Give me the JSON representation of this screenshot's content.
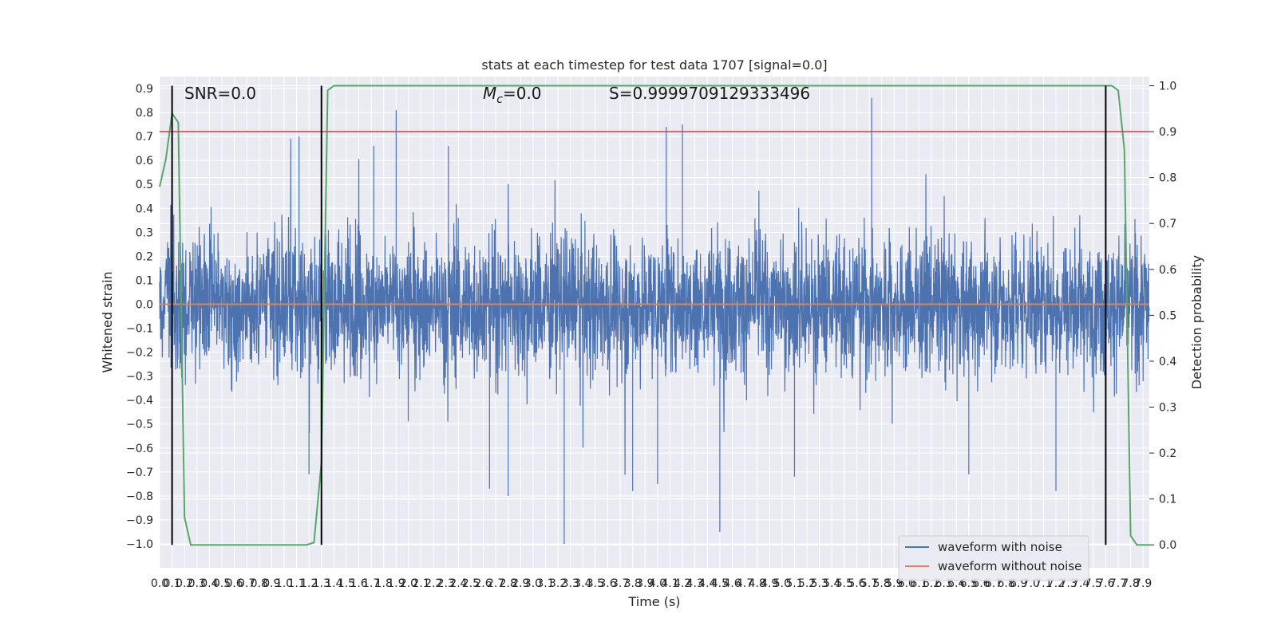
{
  "chart_data": {
    "type": "line",
    "title": "stats at each timestep for test data 1707 [signal=0.0]",
    "xlabel": "Time (s)",
    "ylabel": "Whitened strain",
    "y2label": "Detection probability",
    "xlim": [
      0.0,
      7.95
    ],
    "ylim": [
      -1.1,
      0.95
    ],
    "y2lim": [
      -0.05,
      1.02
    ],
    "x_ticks": [
      0.0,
      0.1,
      0.2,
      0.3,
      0.4,
      0.5,
      0.6,
      0.7,
      0.8,
      0.9,
      1.0,
      1.1,
      1.2,
      1.3,
      1.4,
      1.5,
      1.6,
      1.7,
      1.8,
      1.9,
      2.0,
      2.1,
      2.2,
      2.3,
      2.4,
      2.5,
      2.6,
      2.7,
      2.8,
      2.9,
      3.0,
      3.1,
      3.2,
      3.3,
      3.4,
      3.5,
      3.6,
      3.7,
      3.8,
      3.9,
      4.0,
      4.1,
      4.2,
      4.3,
      4.4,
      4.5,
      4.6,
      4.7,
      4.8,
      4.9,
      5.0,
      5.1,
      5.2,
      5.3,
      5.4,
      5.5,
      5.6,
      5.7,
      5.8,
      5.9,
      6.0,
      6.1,
      6.2,
      6.3,
      6.4,
      6.5,
      6.6,
      6.7,
      6.8,
      6.9,
      7.0,
      7.1,
      7.2,
      7.3,
      7.4,
      7.5,
      7.6,
      7.7,
      7.8,
      7.9
    ],
    "y_ticks": [
      -1.0,
      -0.9,
      -0.8,
      -0.7,
      -0.6,
      -0.5,
      -0.4,
      -0.3,
      -0.2,
      -0.1,
      0.0,
      0.1,
      0.2,
      0.3,
      0.4,
      0.5,
      0.6,
      0.7,
      0.8,
      0.9
    ],
    "y2_ticks": [
      0.0,
      0.1,
      0.2,
      0.3,
      0.4,
      0.5,
      0.6,
      0.7,
      0.8,
      0.9,
      1.0
    ],
    "grid": true,
    "legend_position": "lower-right",
    "annotations": {
      "snr": "SNR=0.0",
      "mc": "=0.0",
      "mc_symbol": "M",
      "mc_sub": "c",
      "s": "S=0.9999709129333496"
    },
    "series": [
      {
        "name": "waveform with noise",
        "color": "#4c72b0",
        "kind": "noise",
        "y_range": [
          -1.0,
          0.86
        ],
        "spikes": [
          {
            "x": 1.12,
            "y": 0.7
          },
          {
            "x": 1.9,
            "y": 0.81
          },
          {
            "x": 1.72,
            "y": 0.66
          },
          {
            "x": 2.32,
            "y": 0.66
          },
          {
            "x": 4.07,
            "y": 0.74
          },
          {
            "x": 4.2,
            "y": 0.75
          },
          {
            "x": 5.72,
            "y": 0.86
          },
          {
            "x": 3.25,
            "y": -1.0
          },
          {
            "x": 4.5,
            "y": -0.95
          },
          {
            "x": 2.8,
            "y": -0.8
          },
          {
            "x": 4.0,
            "y": -0.75
          },
          {
            "x": 2.65,
            "y": -0.77
          },
          {
            "x": 5.1,
            "y": -0.72
          },
          {
            "x": 7.2,
            "y": -0.78
          },
          {
            "x": 6.5,
            "y": -0.71
          },
          {
            "x": 1.2,
            "y": -0.71
          },
          {
            "x": 3.8,
            "y": -0.78
          }
        ]
      },
      {
        "name": "waveform without noise",
        "color": "#dd8452",
        "kind": "flat",
        "value": 0.0
      },
      {
        "name": "",
        "color": "#55a868",
        "axis": "y2",
        "kind": "probability",
        "x": [
          0.0,
          0.05,
          0.1,
          0.15,
          0.2,
          0.25,
          1.1,
          1.18,
          1.24,
          1.3,
          1.35,
          1.4,
          7.6,
          7.65,
          7.7,
          7.75,
          7.8,
          7.85,
          7.95
        ],
        "values": [
          0.78,
          0.84,
          0.94,
          0.92,
          0.06,
          0.0,
          0.0,
          0.0,
          0.005,
          0.18,
          0.99,
          1.0,
          1.0,
          1.0,
          0.99,
          0.86,
          0.02,
          0.0,
          0.0
        ]
      },
      {
        "name": "",
        "color": "#c44e52",
        "axis": "y2",
        "kind": "threshold",
        "value": 0.9
      }
    ],
    "vertical_lines": [
      0.1,
      1.3,
      7.6
    ],
    "vertical_line_color": "#000000"
  }
}
